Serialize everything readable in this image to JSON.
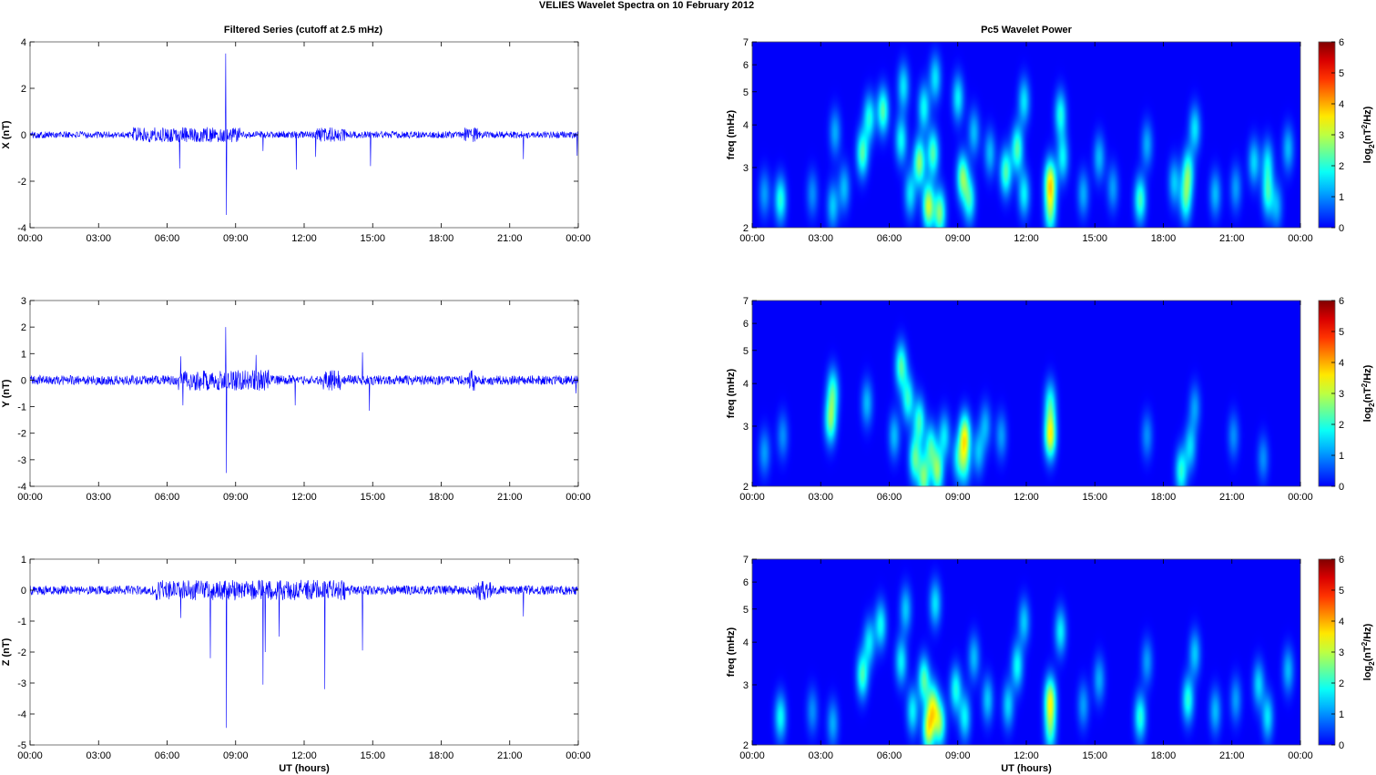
{
  "figure": {
    "suptitle": "VELIES Wavelet Spectra on 10 February  2012",
    "left_title": "Filtered Series (cutoff at 2.5 mHz)",
    "right_title": "Pc5 Wavelet Power",
    "xlabel": "UT (hours)"
  },
  "x_ticks": [
    "00:00",
    "03:00",
    "06:00",
    "09:00",
    "12:00",
    "15:00",
    "18:00",
    "21:00",
    "00:00"
  ],
  "chart_data": [
    {
      "type": "line",
      "component": "X",
      "ylabel": "X (nT)",
      "ylim": [
        -4,
        4
      ],
      "y_ticks": [
        "4",
        "2",
        "0",
        "-2",
        "-4"
      ],
      "y_tick_values": [
        4,
        2,
        0,
        -2,
        -4
      ],
      "xlim_hours": [
        0,
        24
      ],
      "line_color": "#0000ff",
      "baseline_noise_amplitude": 0.15,
      "active_intervals_hours": [
        [
          4.5,
          9.2
        ],
        [
          12.5,
          13.8
        ],
        [
          19.0,
          19.6
        ]
      ],
      "spikes": [
        {
          "x": 6.55,
          "y": -1.45
        },
        {
          "x": 8.57,
          "y": 3.5
        },
        {
          "x": 8.6,
          "y": -3.45
        },
        {
          "x": 10.2,
          "y": -0.7
        },
        {
          "x": 11.65,
          "y": -1.5
        },
        {
          "x": 12.5,
          "y": -0.95
        },
        {
          "x": 14.9,
          "y": -1.35
        },
        {
          "x": 21.6,
          "y": -1.05
        },
        {
          "x": 23.95,
          "y": -0.9
        }
      ]
    },
    {
      "type": "line",
      "component": "Y",
      "ylabel": "Y (nT)",
      "ylim": [
        -4,
        3
      ],
      "y_ticks": [
        "3",
        "2",
        "1",
        "0",
        "-1",
        "-2",
        "-3",
        "-4"
      ],
      "y_tick_values": [
        3,
        2,
        1,
        0,
        -1,
        -2,
        -3,
        -4
      ],
      "xlim_hours": [
        0,
        24
      ],
      "line_color": "#0000ff",
      "baseline_noise_amplitude": 0.18,
      "active_intervals_hours": [
        [
          6.5,
          10.5
        ],
        [
          12.8,
          13.6
        ],
        [
          19.2,
          19.5
        ]
      ],
      "spikes": [
        {
          "x": 6.6,
          "y": 0.9
        },
        {
          "x": 6.7,
          "y": -0.95
        },
        {
          "x": 8.57,
          "y": 2.0
        },
        {
          "x": 8.6,
          "y": -3.5
        },
        {
          "x": 9.9,
          "y": 0.95
        },
        {
          "x": 11.6,
          "y": -0.95
        },
        {
          "x": 14.55,
          "y": 1.05
        },
        {
          "x": 14.85,
          "y": -1.15
        },
        {
          "x": 23.9,
          "y": -0.5
        }
      ]
    },
    {
      "type": "line",
      "component": "Z",
      "ylabel": "Z (nT)",
      "ylim": [
        -5,
        1
      ],
      "y_ticks": [
        "1",
        "0",
        "-1",
        "-2",
        "-3",
        "-4",
        "-5"
      ],
      "y_tick_values": [
        1,
        0,
        -1,
        -2,
        -3,
        -4,
        -5
      ],
      "xlim_hours": [
        0,
        24
      ],
      "line_color": "#0000ff",
      "baseline_noise_amplitude": 0.15,
      "active_intervals_hours": [
        [
          5.5,
          13.8
        ],
        [
          19.5,
          20.2
        ]
      ],
      "spikes": [
        {
          "x": 6.6,
          "y": -0.9
        },
        {
          "x": 7.9,
          "y": -2.2
        },
        {
          "x": 8.6,
          "y": -4.45
        },
        {
          "x": 10.2,
          "y": -3.05
        },
        {
          "x": 10.3,
          "y": -2.0
        },
        {
          "x": 10.9,
          "y": -1.5
        },
        {
          "x": 12.9,
          "y": -3.2
        },
        {
          "x": 14.55,
          "y": -1.95
        },
        {
          "x": 21.6,
          "y": -0.85
        }
      ]
    },
    {
      "type": "heatmap",
      "component": "X",
      "ylabel": "freq (mHz)",
      "y_scale": "log",
      "ylim": [
        2,
        7
      ],
      "y_ticks": [
        "7",
        "6",
        "5",
        "4",
        "3",
        "2"
      ],
      "y_tick_values": [
        7,
        6,
        5,
        4,
        3,
        2
      ],
      "xlim_hours": [
        0,
        24
      ],
      "colorbar_label": "log2(nT2/Hz)",
      "colorbar_range": [
        0,
        6
      ],
      "colorbar_ticks": [
        "6",
        "5",
        "4",
        "3",
        "2",
        "1",
        "0"
      ],
      "colormap": "jet",
      "blobs": [
        {
          "t": 0.5,
          "f": 2.5,
          "v": 1.1
        },
        {
          "t": 1.2,
          "f": 2.4,
          "v": 2.0
        },
        {
          "t": 2.6,
          "f": 2.5,
          "v": 1.0
        },
        {
          "t": 3.5,
          "f": 2.3,
          "v": 1.4
        },
        {
          "t": 3.6,
          "f": 3.8,
          "v": 1.2
        },
        {
          "t": 4.0,
          "f": 2.6,
          "v": 1.3
        },
        {
          "t": 4.8,
          "f": 3.3,
          "v": 2.3
        },
        {
          "t": 5.1,
          "f": 4.2,
          "v": 1.9
        },
        {
          "t": 5.7,
          "f": 4.4,
          "v": 2.3
        },
        {
          "t": 6.5,
          "f": 3.6,
          "v": 1.8
        },
        {
          "t": 6.6,
          "f": 5.2,
          "v": 1.6
        },
        {
          "t": 6.9,
          "f": 2.5,
          "v": 1.6
        },
        {
          "t": 7.3,
          "f": 3.1,
          "v": 2.7
        },
        {
          "t": 7.5,
          "f": 4.5,
          "v": 1.8
        },
        {
          "t": 7.7,
          "f": 2.3,
          "v": 3.1
        },
        {
          "t": 7.9,
          "f": 3.3,
          "v": 2.3
        },
        {
          "t": 8.2,
          "f": 2.2,
          "v": 2.6
        },
        {
          "t": 8.0,
          "f": 5.5,
          "v": 1.6
        },
        {
          "t": 9.0,
          "f": 4.8,
          "v": 1.7
        },
        {
          "t": 9.2,
          "f": 2.8,
          "v": 2.6
        },
        {
          "t": 9.5,
          "f": 2.4,
          "v": 2.0
        },
        {
          "t": 9.7,
          "f": 3.8,
          "v": 1.3
        },
        {
          "t": 10.4,
          "f": 3.3,
          "v": 1.3
        },
        {
          "t": 11.1,
          "f": 2.9,
          "v": 2.3
        },
        {
          "t": 11.6,
          "f": 3.4,
          "v": 2.3
        },
        {
          "t": 11.9,
          "f": 2.5,
          "v": 1.7
        },
        {
          "t": 11.9,
          "f": 4.7,
          "v": 1.6
        },
        {
          "t": 13.05,
          "f": 2.7,
          "v": 3.4
        },
        {
          "t": 13.05,
          "f": 2.2,
          "v": 2.1
        },
        {
          "t": 13.5,
          "f": 4.3,
          "v": 1.9
        },
        {
          "t": 13.6,
          "f": 3.2,
          "v": 1.7
        },
        {
          "t": 14.5,
          "f": 2.5,
          "v": 1.2
        },
        {
          "t": 15.2,
          "f": 3.2,
          "v": 1.3
        },
        {
          "t": 15.8,
          "f": 2.6,
          "v": 1.1
        },
        {
          "t": 17.0,
          "f": 2.4,
          "v": 2.2
        },
        {
          "t": 17.3,
          "f": 3.5,
          "v": 1.2
        },
        {
          "t": 18.5,
          "f": 2.7,
          "v": 1.4
        },
        {
          "t": 19.0,
          "f": 2.4,
          "v": 2.0
        },
        {
          "t": 19.1,
          "f": 2.9,
          "v": 2.2
        },
        {
          "t": 19.4,
          "f": 3.9,
          "v": 1.6
        },
        {
          "t": 20.3,
          "f": 2.5,
          "v": 1.3
        },
        {
          "t": 21.2,
          "f": 2.6,
          "v": 1.1
        },
        {
          "t": 22.0,
          "f": 3.1,
          "v": 1.5
        },
        {
          "t": 22.6,
          "f": 2.5,
          "v": 1.9
        },
        {
          "t": 22.6,
          "f": 3.1,
          "v": 1.5
        },
        {
          "t": 23.0,
          "f": 2.3,
          "v": 1.2
        },
        {
          "t": 23.5,
          "f": 3.4,
          "v": 1.3
        }
      ]
    },
    {
      "type": "heatmap",
      "component": "Y",
      "ylabel": "freq (mHz)",
      "y_scale": "log",
      "ylim": [
        2,
        7
      ],
      "y_ticks": [
        "7",
        "6",
        "5",
        "4",
        "3",
        "2"
      ],
      "y_tick_values": [
        7,
        6,
        5,
        4,
        3,
        2
      ],
      "xlim_hours": [
        0,
        24
      ],
      "colorbar_label": "log2(nT2/Hz)",
      "colorbar_range": [
        0,
        6
      ],
      "colorbar_ticks": [
        "6",
        "5",
        "4",
        "3",
        "2",
        "1",
        "0"
      ],
      "colormap": "jet",
      "blobs": [
        {
          "t": 0.5,
          "f": 2.5,
          "v": 1.1
        },
        {
          "t": 1.3,
          "f": 2.8,
          "v": 1.0
        },
        {
          "t": 3.4,
          "f": 3.1,
          "v": 2.4
        },
        {
          "t": 3.5,
          "f": 3.8,
          "v": 2.0
        },
        {
          "t": 5.0,
          "f": 3.5,
          "v": 1.3
        },
        {
          "t": 6.2,
          "f": 2.8,
          "v": 1.3
        },
        {
          "t": 6.5,
          "f": 4.5,
          "v": 2.3
        },
        {
          "t": 6.8,
          "f": 3.6,
          "v": 2.0
        },
        {
          "t": 7.1,
          "f": 2.4,
          "v": 2.3
        },
        {
          "t": 7.3,
          "f": 3.1,
          "v": 2.1
        },
        {
          "t": 7.5,
          "f": 2.1,
          "v": 2.5
        },
        {
          "t": 7.8,
          "f": 2.6,
          "v": 2.0
        },
        {
          "t": 8.1,
          "f": 2.2,
          "v": 2.6
        },
        {
          "t": 8.4,
          "f": 2.8,
          "v": 1.6
        },
        {
          "t": 9.0,
          "f": 2.4,
          "v": 1.5
        },
        {
          "t": 9.3,
          "f": 2.8,
          "v": 3.1
        },
        {
          "t": 9.3,
          "f": 2.3,
          "v": 1.6
        },
        {
          "t": 9.9,
          "f": 2.5,
          "v": 1.3
        },
        {
          "t": 10.2,
          "f": 3.0,
          "v": 1.2
        },
        {
          "t": 10.9,
          "f": 2.8,
          "v": 1.1
        },
        {
          "t": 13.05,
          "f": 2.8,
          "v": 3.3
        },
        {
          "t": 13.05,
          "f": 3.5,
          "v": 1.8
        },
        {
          "t": 17.3,
          "f": 2.8,
          "v": 1.0
        },
        {
          "t": 18.8,
          "f": 2.2,
          "v": 2.0
        },
        {
          "t": 19.2,
          "f": 2.6,
          "v": 1.5
        },
        {
          "t": 19.4,
          "f": 3.4,
          "v": 1.1
        },
        {
          "t": 21.1,
          "f": 2.8,
          "v": 1.0
        },
        {
          "t": 22.4,
          "f": 2.4,
          "v": 1.0
        }
      ]
    },
    {
      "type": "heatmap",
      "component": "Z",
      "ylabel": "freq (mHz)",
      "y_scale": "log",
      "ylim": [
        2,
        7
      ],
      "y_ticks": [
        "7",
        "6",
        "5",
        "4",
        "3",
        "2"
      ],
      "y_tick_values": [
        7,
        6,
        5,
        4,
        3,
        2
      ],
      "xlim_hours": [
        0,
        24
      ],
      "colorbar_label": "log2(nT2/Hz)",
      "colorbar_range": [
        0,
        6
      ],
      "colorbar_ticks": [
        "6",
        "5",
        "4",
        "3",
        "2",
        "1",
        "0"
      ],
      "colormap": "jet",
      "blobs": [
        {
          "t": 1.2,
          "f": 2.4,
          "v": 1.8
        },
        {
          "t": 2.6,
          "f": 2.5,
          "v": 1.0
        },
        {
          "t": 3.5,
          "f": 2.3,
          "v": 1.2
        },
        {
          "t": 4.8,
          "f": 3.2,
          "v": 2.2
        },
        {
          "t": 5.1,
          "f": 4.0,
          "v": 1.6
        },
        {
          "t": 5.6,
          "f": 4.5,
          "v": 1.8
        },
        {
          "t": 6.5,
          "f": 3.5,
          "v": 1.7
        },
        {
          "t": 6.7,
          "f": 5.0,
          "v": 1.4
        },
        {
          "t": 7.0,
          "f": 2.5,
          "v": 1.7
        },
        {
          "t": 7.5,
          "f": 3.1,
          "v": 2.3
        },
        {
          "t": 7.7,
          "f": 2.2,
          "v": 3.0
        },
        {
          "t": 7.9,
          "f": 2.6,
          "v": 2.6
        },
        {
          "t": 8.2,
          "f": 2.3,
          "v": 2.5
        },
        {
          "t": 8.0,
          "f": 5.2,
          "v": 1.6
        },
        {
          "t": 8.9,
          "f": 2.9,
          "v": 1.9
        },
        {
          "t": 9.3,
          "f": 2.4,
          "v": 1.7
        },
        {
          "t": 9.7,
          "f": 3.6,
          "v": 1.3
        },
        {
          "t": 10.3,
          "f": 2.7,
          "v": 1.4
        },
        {
          "t": 11.2,
          "f": 2.6,
          "v": 1.5
        },
        {
          "t": 11.6,
          "f": 3.4,
          "v": 1.8
        },
        {
          "t": 11.9,
          "f": 4.6,
          "v": 1.4
        },
        {
          "t": 13.05,
          "f": 2.7,
          "v": 3.1
        },
        {
          "t": 13.05,
          "f": 2.2,
          "v": 1.9
        },
        {
          "t": 13.5,
          "f": 4.3,
          "v": 1.7
        },
        {
          "t": 14.5,
          "f": 2.6,
          "v": 1.1
        },
        {
          "t": 15.2,
          "f": 3.1,
          "v": 1.2
        },
        {
          "t": 17.0,
          "f": 2.4,
          "v": 2.0
        },
        {
          "t": 17.3,
          "f": 3.5,
          "v": 1.1
        },
        {
          "t": 19.1,
          "f": 2.7,
          "v": 2.0
        },
        {
          "t": 19.4,
          "f": 3.7,
          "v": 1.4
        },
        {
          "t": 20.3,
          "f": 2.5,
          "v": 1.3
        },
        {
          "t": 21.2,
          "f": 2.7,
          "v": 1.1
        },
        {
          "t": 22.2,
          "f": 3.0,
          "v": 1.5
        },
        {
          "t": 22.6,
          "f": 2.4,
          "v": 1.6
        },
        {
          "t": 23.5,
          "f": 3.3,
          "v": 1.3
        }
      ]
    }
  ]
}
